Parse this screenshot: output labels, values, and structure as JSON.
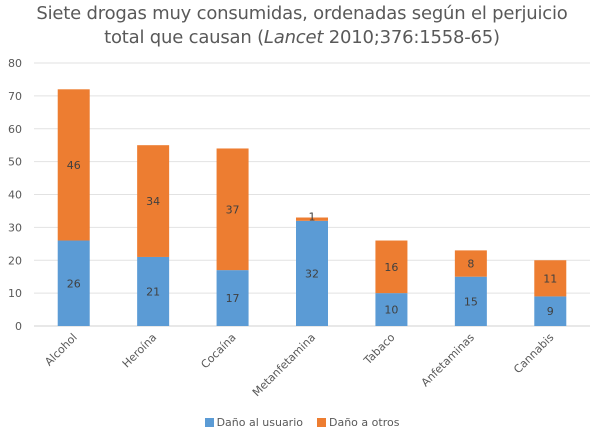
{
  "chart_data": {
    "type": "bar",
    "stacked": true,
    "title_main": "Siete drogas muy consumidas, ordenadas según el perjuicio",
    "title_line2_prefix": "total que causan (",
    "title_line2_italic": "Lancet",
    "title_line2_suffix": " 2010;376:1558-65)",
    "xlabel": "",
    "ylabel": "",
    "ylim": [
      0,
      80
    ],
    "yticks": [
      0,
      10,
      20,
      30,
      40,
      50,
      60,
      70,
      80
    ],
    "grid": true,
    "legend_position": "bottom",
    "categories": [
      "Alcohol",
      "Heroína",
      "Cocaína",
      "Metanfetamina",
      "Tabaco",
      "Anfetaminas",
      "Cannabis"
    ],
    "series": [
      {
        "name": "Daño al usuario",
        "color": "#5B9BD5",
        "values": [
          26,
          21,
          17,
          32,
          10,
          15,
          9
        ]
      },
      {
        "name": "Daño a otros",
        "color": "#ED7D31",
        "values": [
          46,
          34,
          37,
          1,
          16,
          8,
          11
        ]
      }
    ]
  }
}
